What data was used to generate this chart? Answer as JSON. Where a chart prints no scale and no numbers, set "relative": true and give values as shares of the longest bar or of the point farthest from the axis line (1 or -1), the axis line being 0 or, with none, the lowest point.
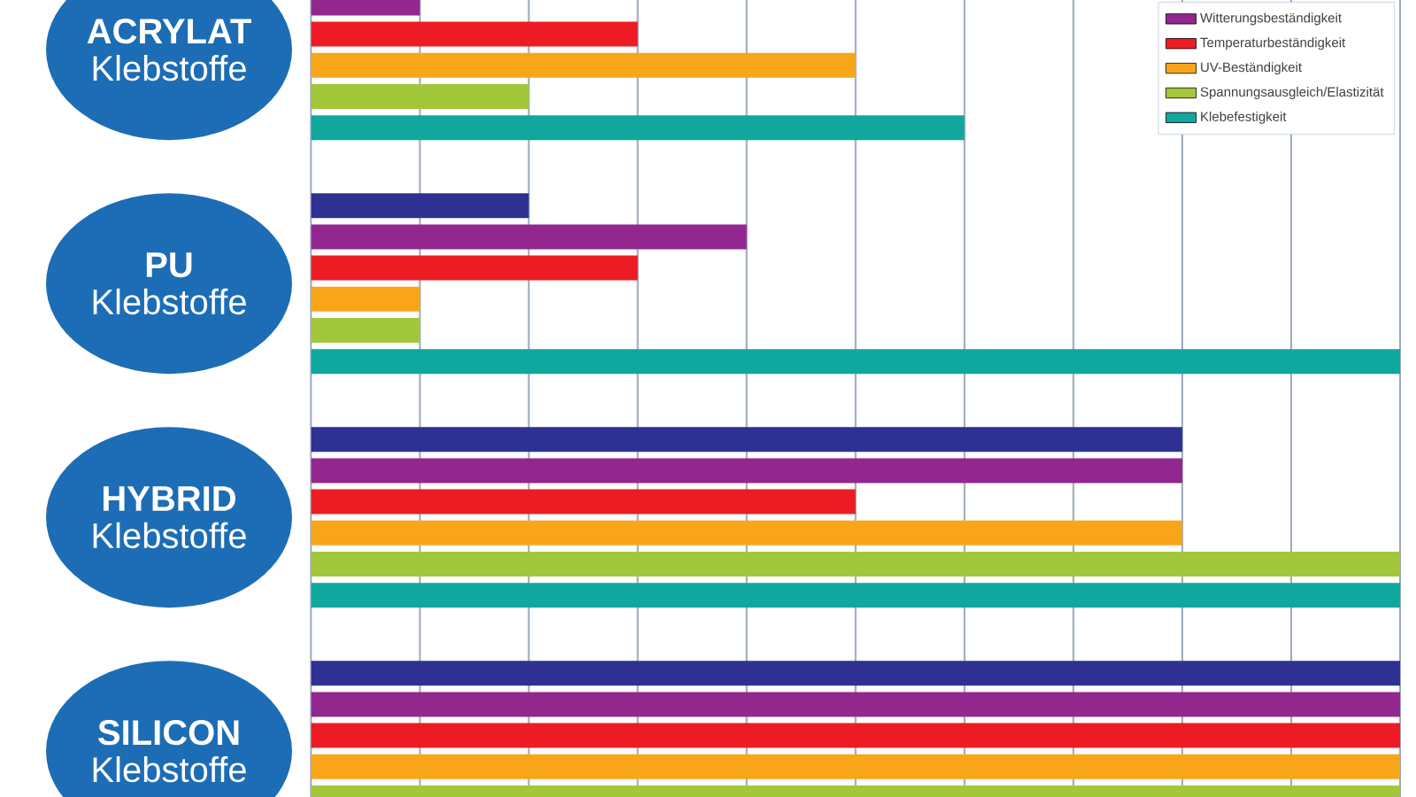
{
  "chart_data": {
    "type": "bar",
    "orientation": "horizontal",
    "relative": true,
    "categories": [
      "**ACRYLAT** Klebstoffe",
      "**PU** Klebstoffe",
      "**HYBRID** Klebstoffe",
      "**SILICON** Klebstoffe"
    ],
    "series": [
      {
        "color": "#2e3192",
        "values": [
          null,
          0.2,
          0.8,
          1
        ]
      },
      {
        "name": "Witterungsbeständigkeit",
        "color": "#92278f",
        "values": [
          0.1,
          0.4,
          0.8,
          1
        ]
      },
      {
        "name": "Temperaturbeständigkeit",
        "color": "#ed1c24",
        "values": [
          0.3,
          0.3,
          0.5,
          1
        ]
      },
      {
        "name": "UV-Beständigkeit",
        "color": "#f9a51a",
        "values": [
          0.5,
          0.1,
          0.8,
          1
        ]
      },
      {
        "name": "Spannungsausgleich/Elastizität",
        "color": "#a3c73a",
        "values": [
          0.2,
          0.1,
          1,
          1
        ]
      },
      {
        "name": "Klebefestigkeit",
        "color": "#10a89e",
        "values": [
          0.6,
          1,
          1,
          null
        ]
      }
    ],
    "grid": "x",
    "legend": "top right"
  }
}
